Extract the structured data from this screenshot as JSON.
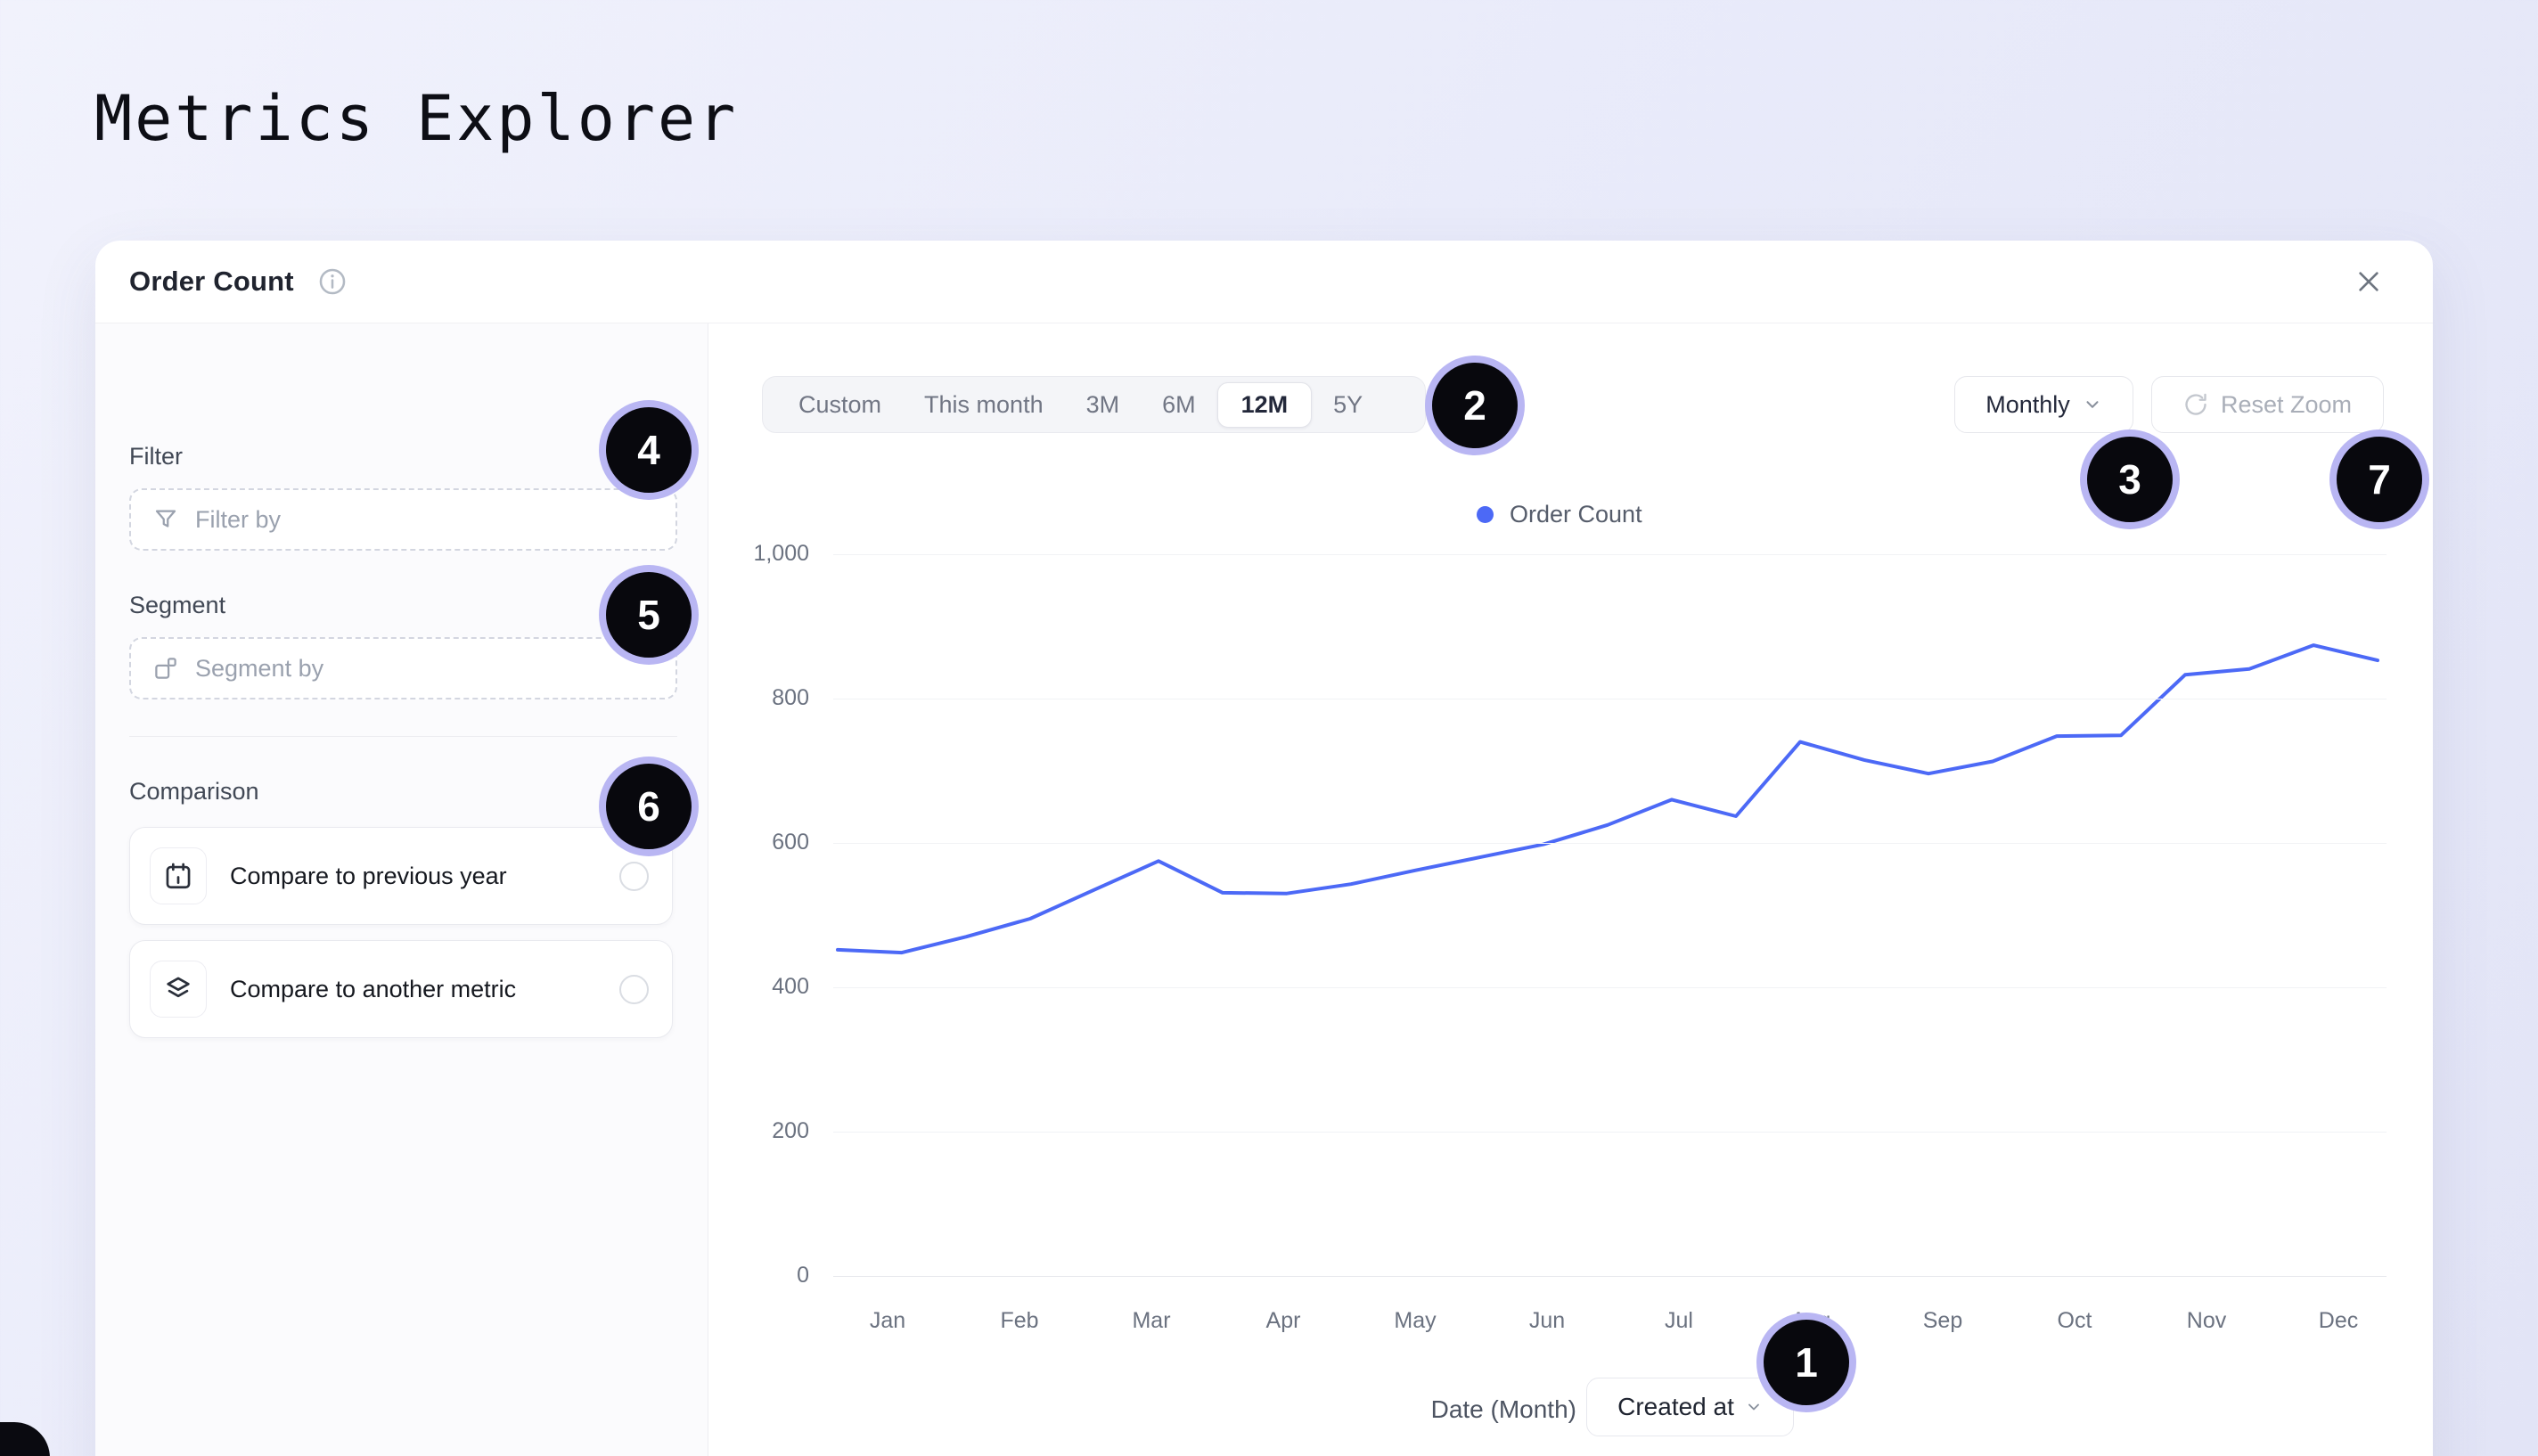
{
  "page": {
    "title": "Metrics Explorer"
  },
  "panel": {
    "title": "Order Count"
  },
  "sidebar": {
    "filter": {
      "label": "Filter",
      "placeholder": "Filter by"
    },
    "segment": {
      "label": "Segment",
      "placeholder": "Segment by"
    },
    "comparison": {
      "label": "Comparison",
      "options": [
        {
          "label": "Compare to previous year"
        },
        {
          "label": "Compare to another metric"
        }
      ]
    }
  },
  "toolbar": {
    "ranges": [
      "Custom",
      "This month",
      "3M",
      "6M",
      "12M",
      "5Y"
    ],
    "selected_range": "12M",
    "granularity": "Monthly",
    "reset_zoom_label": "Reset Zoom"
  },
  "chart_data": {
    "type": "line",
    "title": "",
    "categories": [
      "Jan",
      "Feb",
      "Mar",
      "Apr",
      "May",
      "Jun",
      "Jul",
      "Aug",
      "Sep",
      "Oct",
      "Nov",
      "Dec"
    ],
    "series": [
      {
        "name": "Order Count",
        "color": "#4c69f6",
        "values": [
          452,
          483,
          570,
          531,
          552,
          595,
          655,
          728,
          700,
          747,
          830,
          870
        ],
        "polyline_points": [
          452,
          448,
          470,
          495,
          535,
          575,
          531,
          530,
          543,
          562,
          580,
          598,
          625,
          660,
          637,
          740,
          715,
          696,
          713,
          748,
          749,
          833,
          841,
          874,
          853
        ]
      }
    ],
    "ylim": [
      0,
      1000
    ],
    "yticks": [
      "0",
      "200",
      "400",
      "600",
      "800",
      "1,000"
    ],
    "grid": "horizontal",
    "legend_position": "top",
    "xlabel": "Date (Month)"
  },
  "xaxis_control": {
    "label": "Date (Month)",
    "value": "Created at"
  },
  "annotations": {
    "badges": [
      "1",
      "2",
      "3",
      "4",
      "5",
      "6",
      "7"
    ]
  },
  "colors": {
    "line": "#4c69f6",
    "badge_fill": "#08080d",
    "badge_ring": "#b9b6f3"
  }
}
